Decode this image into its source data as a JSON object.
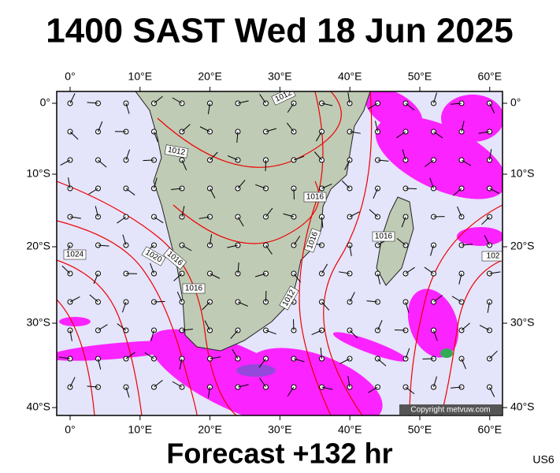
{
  "title": "1400 SAST Wed 18 Jun 2025",
  "lon_labels": [
    "0°",
    "10°E",
    "20°E",
    "30°E",
    "40°E",
    "50°E",
    "60°E"
  ],
  "lat_labels": [
    "0°",
    "10°S",
    "20°S",
    "30°S",
    "40°S"
  ],
  "isobar_labels": [
    "1012",
    "1012",
    "1016",
    "1016",
    "1024",
    "1020",
    "1016",
    "1016",
    "1012",
    "1016",
    "102"
  ],
  "copyright": "Copyright metvuw.com",
  "footer": "Forecast +132 hr",
  "model": "US6"
}
